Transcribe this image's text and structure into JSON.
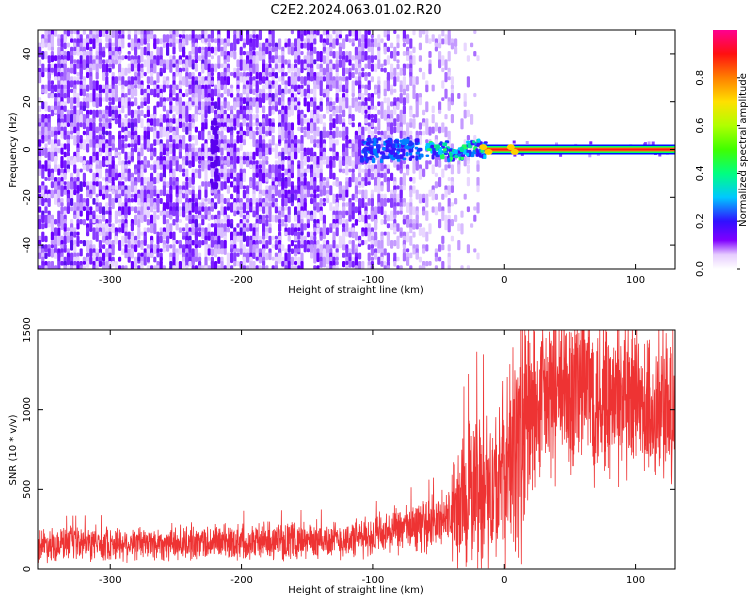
{
  "title": "C2E2.2024.063.01.02.R20",
  "colors": {
    "snr_line": "#ee3333",
    "axis": "#000000",
    "background": "#ffffff"
  },
  "chart_data": [
    {
      "type": "heatmap",
      "title": "C2E2.2024.063.01.02.R20",
      "xlabel": "Height of straight line (km)",
      "ylabel": "Frequency (Hz)",
      "xlim": [
        -355,
        130
      ],
      "ylim": [
        -50,
        50
      ],
      "xticks": [
        -300,
        -200,
        -100,
        0,
        100
      ],
      "yticks": [
        -40,
        -20,
        0,
        20,
        40
      ],
      "ridge": {
        "x_start": -15,
        "x_end": 130,
        "frequency": 0
      },
      "colorbar": {
        "label": "Normalized spectral amplitude",
        "range": [
          0,
          1
        ],
        "ticks": [
          "0.0",
          "0.2",
          "0.4",
          "0.6",
          "0.8"
        ],
        "colormap": "hsv (white–violet–blue–cyan–green–yellow–orange–red–magenta)"
      },
      "grid": false
    },
    {
      "type": "line",
      "xlabel": "Height of straight line (km)",
      "ylabel": "SNR (10 * v/v)",
      "xlim": [
        -355,
        130
      ],
      "ylim": [
        0,
        1500
      ],
      "xticks": [
        -300,
        -200,
        -100,
        0,
        100
      ],
      "yticks": [
        0,
        500,
        1000,
        1500
      ],
      "series": [
        {
          "x": [
            -355,
            -300,
            -250,
            -200,
            -150,
            -120,
            -100,
            -80,
            -60,
            -50,
            -40,
            -30,
            -20,
            -15,
            -10,
            -5,
            0,
            10,
            20,
            30,
            40,
            50,
            60,
            70,
            80,
            90,
            100,
            110,
            120,
            130
          ],
          "y": [
            155,
            160,
            162,
            175,
            178,
            182,
            205,
            240,
            280,
            300,
            330,
            420,
            520,
            500,
            480,
            520,
            600,
            800,
            950,
            1050,
            1120,
            1100,
            1180,
            1100,
            1050,
            1020,
            1000,
            980,
            1000,
            990
          ]
        }
      ],
      "grid": false
    }
  ]
}
